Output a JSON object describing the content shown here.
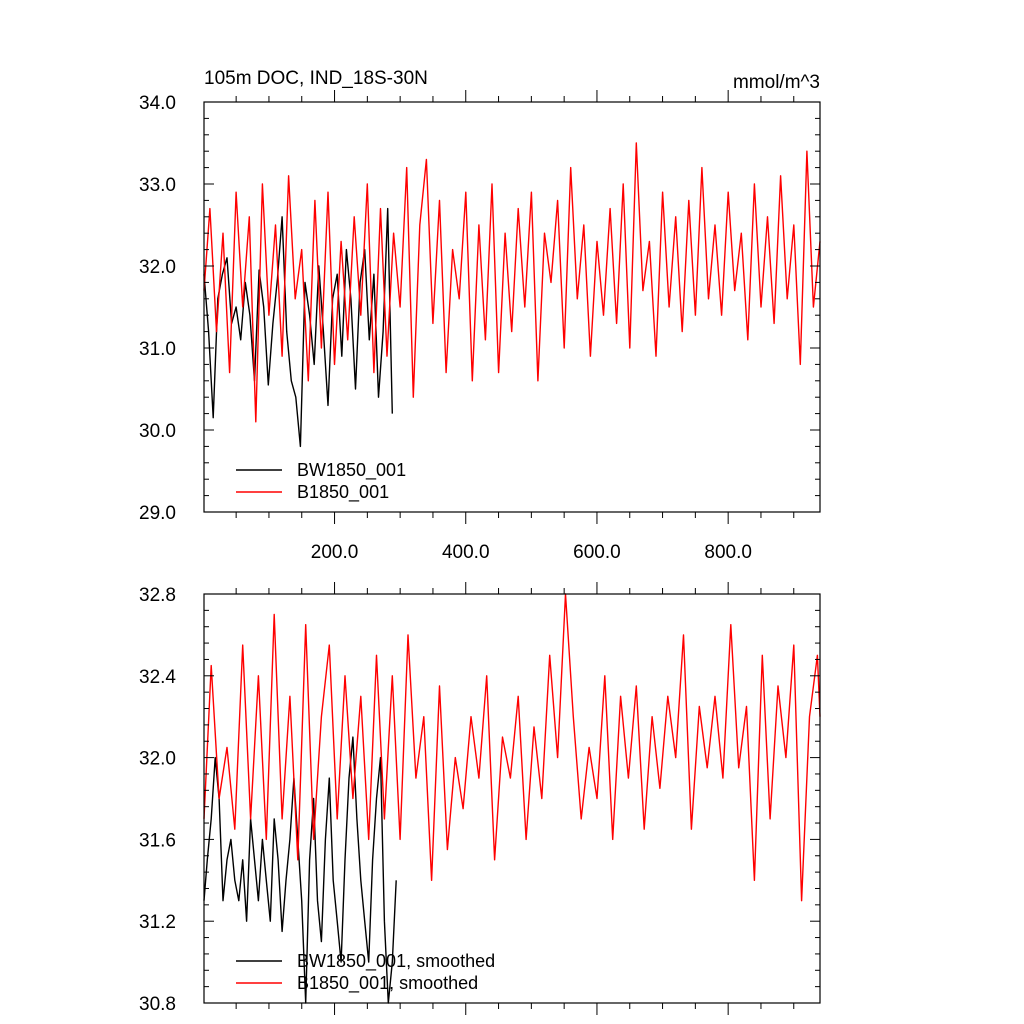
{
  "chart_data": [
    {
      "type": "line",
      "title": "105m DOC, IND_18S-30N",
      "units": "mmol/m^3",
      "xlim": [
        1,
        940
      ],
      "ylim": [
        29.0,
        34.0
      ],
      "x_ticks": [
        200,
        400,
        600,
        800
      ],
      "x_tick_labels": [
        "200.0",
        "400.0",
        "600.0",
        "800.0"
      ],
      "y_ticks": [
        29.0,
        30.0,
        31.0,
        32.0,
        33.0,
        34.0
      ],
      "y_tick_labels": [
        "29.0",
        "30.0",
        "31.0",
        "32.0",
        "33.0",
        "34.0"
      ],
      "legend_position": "bottom-left",
      "series": [
        {
          "name": "BW1850_001",
          "color": "#000000",
          "x": [
            1,
            8,
            15,
            22,
            29,
            36,
            43,
            50,
            57,
            64,
            71,
            78,
            85,
            92,
            99,
            106,
            113,
            120,
            127,
            134,
            141,
            148,
            155,
            162,
            169,
            176,
            183,
            190,
            197,
            204,
            211,
            218,
            225,
            232,
            239,
            246,
            253,
            260,
            267,
            274,
            281,
            288
          ],
          "y": [
            31.9,
            31.2,
            30.15,
            31.6,
            31.9,
            32.1,
            31.3,
            31.5,
            31.1,
            31.8,
            31.4,
            30.6,
            31.95,
            31.5,
            30.55,
            31.3,
            31.85,
            32.6,
            31.2,
            30.6,
            30.4,
            29.8,
            31.8,
            31.4,
            30.8,
            32.0,
            31.2,
            30.3,
            31.6,
            31.9,
            30.9,
            32.2,
            31.6,
            30.5,
            31.8,
            32.2,
            31.1,
            31.9,
            30.4,
            31.2,
            32.7,
            30.2
          ]
        },
        {
          "name": "B1850_001",
          "color": "#ff0000",
          "x": [
            1,
            10,
            20,
            30,
            40,
            50,
            60,
            70,
            80,
            90,
            100,
            110,
            120,
            130,
            140,
            150,
            160,
            170,
            180,
            190,
            200,
            210,
            220,
            230,
            240,
            250,
            260,
            270,
            280,
            290,
            300,
            310,
            320,
            330,
            340,
            350,
            360,
            370,
            380,
            390,
            400,
            410,
            420,
            430,
            440,
            450,
            460,
            470,
            480,
            490,
            500,
            510,
            520,
            530,
            540,
            550,
            560,
            570,
            580,
            590,
            600,
            610,
            620,
            630,
            640,
            650,
            660,
            670,
            680,
            690,
            700,
            710,
            720,
            730,
            740,
            750,
            760,
            770,
            780,
            790,
            800,
            810,
            820,
            830,
            840,
            850,
            860,
            870,
            880,
            890,
            900,
            910,
            920,
            930,
            940
          ],
          "y": [
            31.7,
            32.7,
            31.2,
            32.4,
            30.7,
            32.9,
            31.5,
            32.6,
            30.1,
            33.0,
            31.4,
            32.5,
            30.9,
            33.1,
            31.6,
            32.2,
            30.6,
            32.8,
            31.0,
            32.9,
            30.8,
            32.3,
            31.1,
            32.6,
            31.4,
            33.0,
            30.7,
            32.7,
            30.9,
            32.4,
            31.5,
            33.2,
            30.4,
            32.5,
            33.3,
            31.3,
            32.8,
            30.7,
            32.2,
            31.6,
            32.9,
            30.6,
            32.5,
            31.1,
            33.0,
            30.7,
            32.4,
            31.2,
            32.7,
            31.5,
            32.9,
            30.6,
            32.4,
            31.8,
            32.8,
            31.0,
            33.2,
            31.6,
            32.5,
            30.9,
            32.3,
            31.4,
            32.7,
            31.3,
            33.0,
            31.0,
            33.5,
            31.7,
            32.3,
            30.9,
            32.9,
            31.5,
            32.6,
            31.2,
            32.8,
            31.4,
            33.2,
            31.6,
            32.5,
            31.4,
            32.9,
            31.7,
            32.4,
            31.1,
            33.0,
            31.5,
            32.6,
            31.3,
            33.1,
            31.6,
            32.5,
            30.8,
            33.4,
            31.5,
            32.3
          ]
        }
      ]
    },
    {
      "type": "line",
      "xlim": [
        1,
        940
      ],
      "ylim": [
        30.8,
        32.8
      ],
      "x_ticks": [
        200,
        400,
        600,
        800
      ],
      "y_ticks": [
        30.8,
        31.2,
        31.6,
        32.0,
        32.4,
        32.8
      ],
      "y_tick_labels": [
        "30.8",
        "31.2",
        "31.6",
        "32.0",
        "32.4",
        "32.8"
      ],
      "legend_position": "bottom-left",
      "series": [
        {
          "name": "BW1850_001, smoothed",
          "color": "#000000",
          "x": [
            1,
            6,
            12,
            18,
            24,
            30,
            36,
            42,
            48,
            54,
            60,
            66,
            72,
            78,
            84,
            90,
            96,
            102,
            108,
            114,
            120,
            126,
            132,
            138,
            144,
            150,
            156,
            162,
            168,
            174,
            180,
            186,
            192,
            198,
            204,
            210,
            216,
            222,
            228,
            234,
            240,
            246,
            252,
            258,
            264,
            270,
            276,
            282,
            288,
            294
          ],
          "y": [
            31.3,
            31.5,
            31.7,
            32.0,
            31.8,
            31.3,
            31.5,
            31.6,
            31.4,
            31.3,
            31.5,
            31.2,
            31.7,
            31.5,
            31.3,
            31.6,
            31.4,
            31.2,
            31.7,
            31.5,
            31.15,
            31.4,
            31.6,
            31.9,
            31.6,
            31.3,
            30.8,
            31.5,
            31.8,
            31.3,
            31.1,
            31.6,
            31.9,
            31.4,
            31.2,
            31.0,
            31.5,
            31.9,
            32.1,
            31.7,
            31.4,
            31.2,
            31.0,
            31.5,
            31.8,
            32.0,
            31.2,
            30.8,
            31.0,
            31.4
          ]
        },
        {
          "name": "B1850_001, smoothed",
          "color": "#ff0000",
          "x": [
            1,
            12,
            24,
            36,
            48,
            60,
            72,
            84,
            96,
            108,
            120,
            132,
            144,
            156,
            168,
            180,
            192,
            204,
            216,
            228,
            240,
            252,
            264,
            276,
            288,
            300,
            312,
            324,
            336,
            348,
            360,
            372,
            384,
            396,
            408,
            420,
            432,
            444,
            456,
            468,
            480,
            492,
            504,
            516,
            528,
            540,
            552,
            564,
            576,
            588,
            600,
            612,
            624,
            636,
            648,
            660,
            672,
            684,
            696,
            708,
            720,
            732,
            744,
            756,
            768,
            780,
            792,
            804,
            816,
            828,
            840,
            852,
            864,
            876,
            888,
            900,
            912,
            924,
            936,
            940
          ],
          "y": [
            31.7,
            32.45,
            31.8,
            32.05,
            31.65,
            32.55,
            31.7,
            32.4,
            31.6,
            32.7,
            31.7,
            32.3,
            31.5,
            32.65,
            31.6,
            32.2,
            32.55,
            31.7,
            32.4,
            31.8,
            32.3,
            31.6,
            32.5,
            31.7,
            32.4,
            31.6,
            32.6,
            31.9,
            32.2,
            31.4,
            32.35,
            31.55,
            32.0,
            31.75,
            32.2,
            31.9,
            32.4,
            31.5,
            32.1,
            31.9,
            32.3,
            31.6,
            32.15,
            31.8,
            32.5,
            32.0,
            32.8,
            32.2,
            31.7,
            32.05,
            31.8,
            32.4,
            31.6,
            32.3,
            31.9,
            32.35,
            31.65,
            32.2,
            31.85,
            32.3,
            32.0,
            32.6,
            31.65,
            32.25,
            31.95,
            32.3,
            31.9,
            32.65,
            31.95,
            32.25,
            31.4,
            32.5,
            31.7,
            32.35,
            32.0,
            32.55,
            31.3,
            32.2,
            32.5,
            32.2
          ]
        }
      ]
    }
  ]
}
